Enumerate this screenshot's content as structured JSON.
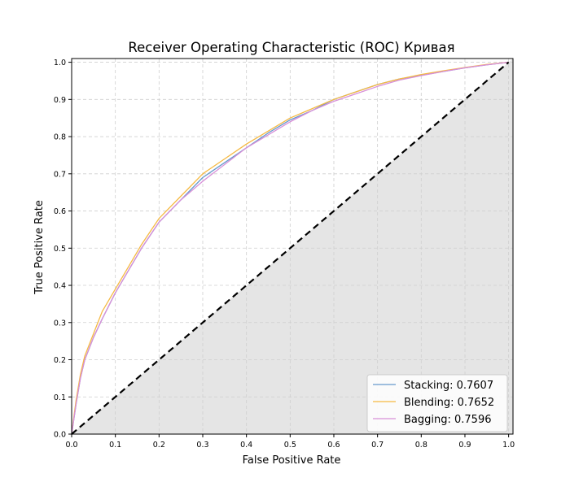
{
  "chart_data": {
    "type": "line",
    "title": "Receiver Operating Characteristic (ROC) Кривая",
    "xlabel": "False Positive Rate",
    "ylabel": "True Positive Rate",
    "xlim": [
      0.0,
      1.01
    ],
    "ylim": [
      0.0,
      1.01
    ],
    "grid": true,
    "legend_position": "bottom-right",
    "x_ticks": [
      0.0,
      0.1,
      0.2,
      0.3,
      0.4,
      0.5,
      0.6,
      0.7,
      0.8,
      0.9,
      1.0
    ],
    "x_tick_labels": [
      "0.0",
      "0.1",
      "0.2",
      "0.3",
      "0.4",
      "0.5",
      "0.6",
      "0.7",
      "0.8",
      "0.9",
      "1.0"
    ],
    "y_ticks": [
      0.0,
      0.1,
      0.2,
      0.3,
      0.4,
      0.5,
      0.6,
      0.7,
      0.8,
      0.9,
      1.0
    ],
    "y_tick_labels": [
      "0.0",
      "0.1",
      "0.2",
      "0.3",
      "0.4",
      "0.5",
      "0.6",
      "0.7",
      "0.8",
      "0.9",
      "1.0"
    ],
    "series": [
      {
        "name": "Stacking: 0.7607",
        "color": "#6699cc",
        "x": [
          0.0,
          0.01,
          0.02,
          0.03,
          0.05,
          0.07,
          0.1,
          0.13,
          0.16,
          0.2,
          0.25,
          0.3,
          0.35,
          0.4,
          0.45,
          0.5,
          0.55,
          0.6,
          0.65,
          0.7,
          0.75,
          0.8,
          0.85,
          0.9,
          0.95,
          1.0
        ],
        "y": [
          0.0,
          0.08,
          0.15,
          0.2,
          0.26,
          0.31,
          0.38,
          0.44,
          0.5,
          0.57,
          0.63,
          0.69,
          0.73,
          0.77,
          0.81,
          0.845,
          0.87,
          0.9,
          0.92,
          0.94,
          0.955,
          0.965,
          0.975,
          0.985,
          0.993,
          1.0
        ]
      },
      {
        "name": "Blending: 0.7652",
        "color": "#f5b942",
        "x": [
          0.0,
          0.01,
          0.02,
          0.03,
          0.05,
          0.07,
          0.1,
          0.13,
          0.16,
          0.2,
          0.25,
          0.3,
          0.35,
          0.4,
          0.45,
          0.5,
          0.55,
          0.6,
          0.65,
          0.7,
          0.75,
          0.8,
          0.85,
          0.9,
          0.95,
          1.0
        ],
        "y": [
          0.0,
          0.09,
          0.16,
          0.21,
          0.27,
          0.33,
          0.39,
          0.45,
          0.51,
          0.58,
          0.64,
          0.7,
          0.74,
          0.78,
          0.815,
          0.85,
          0.875,
          0.9,
          0.92,
          0.94,
          0.955,
          0.967,
          0.977,
          0.986,
          0.994,
          1.0
        ]
      },
      {
        "name": "Bagging: 0.7596",
        "color": "#d88fd8",
        "x": [
          0.0,
          0.01,
          0.02,
          0.03,
          0.05,
          0.07,
          0.1,
          0.13,
          0.16,
          0.2,
          0.25,
          0.3,
          0.35,
          0.4,
          0.45,
          0.5,
          0.55,
          0.6,
          0.65,
          0.7,
          0.75,
          0.8,
          0.85,
          0.9,
          0.95,
          1.0
        ],
        "y": [
          0.0,
          0.08,
          0.15,
          0.2,
          0.26,
          0.31,
          0.38,
          0.44,
          0.5,
          0.57,
          0.63,
          0.68,
          0.725,
          0.77,
          0.805,
          0.84,
          0.87,
          0.895,
          0.915,
          0.935,
          0.952,
          0.964,
          0.975,
          0.985,
          0.993,
          1.0
        ]
      }
    ],
    "reference_line": {
      "x": [
        0.0,
        1.0
      ],
      "y": [
        0.0,
        1.0
      ],
      "color": "#000000",
      "style": "dashed"
    },
    "shaded_region": {
      "description_color": "#e5e5e5",
      "polygon": [
        [
          0.0,
          0.0
        ],
        [
          1.0,
          1.0
        ],
        [
          1.01,
          1.01
        ],
        [
          1.01,
          0.0
        ]
      ]
    }
  }
}
